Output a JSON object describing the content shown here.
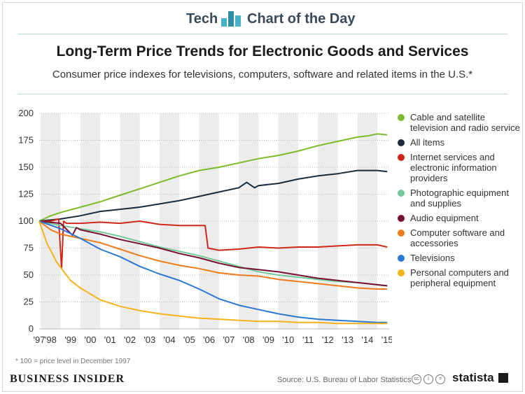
{
  "header": {
    "brand_left": "Tech",
    "brand_right": "Chart of the Day",
    "brand_color": "#48b3c8"
  },
  "footer": {
    "footnote": "* 100 = price level in December 1997",
    "publisher": "BUSINESS INSIDER",
    "source": "Source: U.S. Bureau of Labor Statistics",
    "statista": "statista",
    "license_icons": [
      "cc-icon",
      "info-icon",
      "equals-icon"
    ]
  },
  "chart_data": {
    "type": "line",
    "title": "Long-Term Price Trends for Electronic Goods and Services",
    "subtitle": "Consumer price indexes for televisions, computers, software and related items in the U.S.*",
    "xlabel": "",
    "ylabel": "",
    "x_tick_labels": [
      "'97",
      "'98",
      "'99",
      "'00",
      "'01",
      "'02",
      "'03",
      "'04",
      "'05",
      "'06",
      "'07",
      "'08",
      "'09",
      "'10",
      "'11",
      "'12",
      "'13",
      "'14",
      "'15"
    ],
    "x_range": [
      1997.92,
      2015.6
    ],
    "ylim": [
      0,
      200
    ],
    "y_ticks": [
      0,
      25,
      50,
      75,
      100,
      125,
      150,
      175,
      200
    ],
    "grid": "horizontal dotted; alternating shaded year bands",
    "legend_position": "right",
    "series": [
      {
        "name": "Cable and satellite television and radio service",
        "color": "#7dbb2a",
        "x": [
          1997.92,
          1998.5,
          1999,
          2000,
          2001,
          2002,
          2003,
          2004,
          2005,
          2006,
          2007,
          2008,
          2009,
          2010,
          2011,
          2012,
          2013,
          2014,
          2014.5,
          2015,
          2015.5
        ],
        "y": [
          100,
          105,
          108,
          113,
          118,
          124,
          130,
          136,
          142,
          147,
          150,
          154,
          158,
          161,
          165,
          170,
          174,
          178,
          179,
          181,
          180
        ]
      },
      {
        "name": "All items",
        "color": "#1a2a3a",
        "x": [
          1997.92,
          1999,
          2000,
          2001,
          2002,
          2003,
          2004,
          2005,
          2006,
          2007,
          2008,
          2008.4,
          2008.8,
          2009,
          2010,
          2011,
          2012,
          2013,
          2014,
          2015,
          2015.5
        ],
        "y": [
          100,
          102,
          105,
          109,
          111,
          113,
          116,
          119,
          123,
          127,
          131,
          136,
          131,
          133,
          135,
          139,
          142,
          144,
          147,
          147,
          146
        ]
      },
      {
        "name": "Internet services and electronic information providers",
        "color": "#d0261c",
        "x": [
          1997.92,
          1998.5,
          1998.9,
          1999.05,
          1999.15,
          1999.3,
          2000,
          2001,
          2002,
          2003,
          2004,
          2005,
          2006,
          2006.3,
          2006.45,
          2007,
          2008,
          2009,
          2010,
          2011,
          2012,
          2013,
          2014,
          2015,
          2015.5
        ],
        "y": [
          100,
          100,
          102,
          56,
          100,
          98,
          98,
          99,
          98,
          100,
          97,
          96,
          96,
          96,
          75,
          73,
          74,
          76,
          75,
          76,
          76,
          77,
          78,
          78,
          76
        ]
      },
      {
        "name": "Photographic equipment and supplies",
        "color": "#74c99a",
        "x": [
          1997.92,
          1999,
          2000,
          2001,
          2002,
          2003,
          2004,
          2005,
          2006,
          2007,
          2008,
          2009,
          2010,
          2011,
          2012,
          2013,
          2014,
          2015,
          2015.5
        ],
        "y": [
          100,
          96,
          93,
          90,
          86,
          81,
          76,
          72,
          68,
          63,
          58,
          53,
          50,
          48,
          46,
          44,
          43,
          41,
          40
        ]
      },
      {
        "name": "Audio equipment",
        "color": "#7a1030",
        "x": [
          1997.92,
          1999,
          1999.6,
          1999.8,
          2000,
          2001,
          2002,
          2003,
          2004,
          2005,
          2006,
          2007,
          2008,
          2009,
          2010,
          2011,
          2012,
          2013,
          2014,
          2015,
          2015.5
        ],
        "y": [
          100,
          98,
          87,
          94,
          92,
          88,
          83,
          79,
          75,
          70,
          66,
          61,
          57,
          55,
          53,
          50,
          47,
          45,
          43,
          41,
          40
        ]
      },
      {
        "name": "Computer software and accessories",
        "color": "#f07b1b",
        "x": [
          1997.92,
          1998.5,
          1999,
          2000,
          2001,
          2002,
          2003,
          2004,
          2005,
          2006,
          2007,
          2008,
          2009,
          2010,
          2011,
          2012,
          2013,
          2014,
          2015,
          2015.5
        ],
        "y": [
          100,
          92,
          88,
          84,
          80,
          74,
          68,
          63,
          59,
          56,
          52,
          50,
          49,
          46,
          44,
          42,
          40,
          38,
          37,
          37
        ]
      },
      {
        "name": "Televisions",
        "color": "#2b78d4",
        "x": [
          1997.92,
          1999,
          2000,
          2001,
          2002,
          2003,
          2004,
          2005,
          2006,
          2007,
          2008,
          2009,
          2010,
          2011,
          2012,
          2013,
          2014,
          2015,
          2015.5
        ],
        "y": [
          100,
          93,
          84,
          74,
          67,
          58,
          51,
          45,
          37,
          28,
          22,
          18,
          14,
          11,
          9,
          8,
          7,
          6,
          6
        ]
      },
      {
        "name": "Personal computers and peripheral equipment",
        "color": "#f5b21b",
        "x": [
          1997.92,
          1998.3,
          1998.8,
          1999.5,
          2000,
          2001,
          2002,
          2003,
          2004,
          2005,
          2006,
          2007,
          2008,
          2009,
          2010,
          2011,
          2012,
          2013,
          2014,
          2015,
          2015.5
        ],
        "y": [
          100,
          80,
          62,
          45,
          38,
          27,
          21,
          17,
          14,
          12,
          10,
          9,
          8,
          7,
          7,
          6,
          6,
          5,
          5,
          5,
          5
        ]
      }
    ]
  }
}
